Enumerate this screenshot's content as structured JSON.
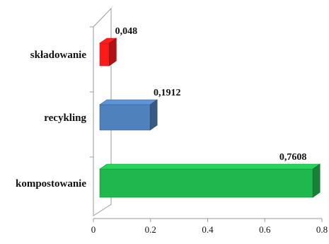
{
  "chart_data": {
    "type": "bar",
    "orientation": "horizontal",
    "style": "3d",
    "categories": [
      "składowanie",
      "recykling",
      "kompostowanie"
    ],
    "values": [
      0.048,
      0.1912,
      0.7608
    ],
    "value_labels": [
      "0,048",
      "0,1912",
      "0,7608"
    ],
    "colors": [
      "#ff1a1a",
      "#4f81bd",
      "#1fb84f"
    ],
    "xlim": [
      0,
      0.8
    ],
    "xticks": [
      0,
      0.2,
      0.4,
      0.6,
      0.8
    ],
    "xtick_labels": [
      "0",
      "0.2",
      "0.4",
      "0.6",
      "0.8"
    ],
    "title": "",
    "xlabel": "",
    "ylabel": "",
    "grid": false,
    "legend": "none"
  }
}
